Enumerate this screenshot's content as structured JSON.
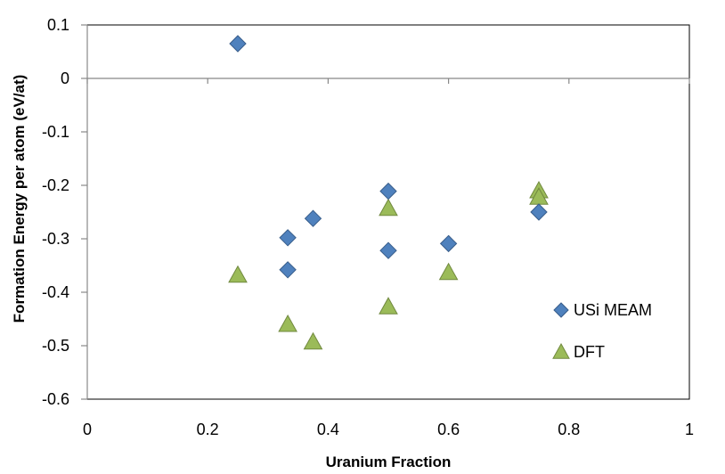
{
  "chart_data": {
    "type": "scatter",
    "title": "",
    "xlabel": "Uranium Fraction",
    "ylabel": "Formation Energy per atom (eV/at)",
    "xlim": [
      0,
      1
    ],
    "ylim": [
      -0.6,
      0.1
    ],
    "x_ticks": [
      0,
      0.2,
      0.4,
      0.6,
      0.8,
      1
    ],
    "x_tick_labels": [
      "0",
      "0.2",
      "0.4",
      "0.6",
      "0.8",
      "1"
    ],
    "y_ticks": [
      0.1,
      0,
      -0.1,
      -0.2,
      -0.3,
      -0.4,
      -0.5,
      -0.6
    ],
    "y_tick_labels": [
      "0.1",
      "0",
      "-0.1",
      "-0.2",
      "-0.3",
      "-0.4",
      "-0.5",
      "-0.6"
    ],
    "grid": false,
    "legend_position": "right",
    "series": [
      {
        "name": "USi MEAM",
        "marker": "diamond",
        "color": "#4F81BD",
        "points": [
          {
            "x": 0.25,
            "y": 0.065
          },
          {
            "x": 0.333,
            "y": -0.298
          },
          {
            "x": 0.333,
            "y": -0.358
          },
          {
            "x": 0.375,
            "y": -0.262
          },
          {
            "x": 0.5,
            "y": -0.211
          },
          {
            "x": 0.5,
            "y": -0.322
          },
          {
            "x": 0.6,
            "y": -0.309
          },
          {
            "x": 0.75,
            "y": -0.25
          }
        ]
      },
      {
        "name": "DFT",
        "marker": "triangle",
        "color": "#9BBB59",
        "points": [
          {
            "x": 0.25,
            "y": -0.368
          },
          {
            "x": 0.333,
            "y": -0.46
          },
          {
            "x": 0.375,
            "y": -0.493
          },
          {
            "x": 0.5,
            "y": -0.243
          },
          {
            "x": 0.5,
            "y": -0.427
          },
          {
            "x": 0.6,
            "y": -0.363
          },
          {
            "x": 0.75,
            "y": -0.21
          },
          {
            "x": 0.75,
            "y": -0.222
          }
        ]
      }
    ]
  }
}
